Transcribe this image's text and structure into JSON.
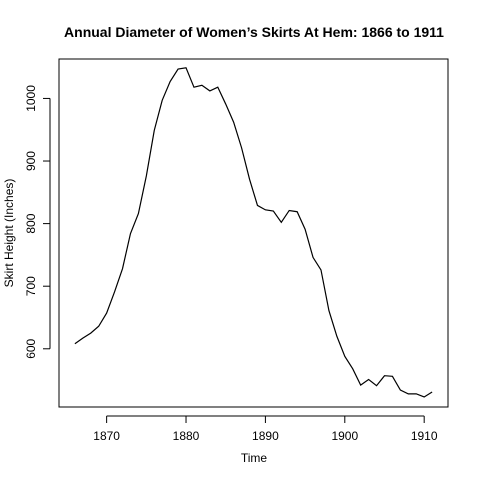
{
  "chart_data": {
    "type": "line",
    "title": "Annual Diameter of Women’s Skirts At Hem: 1866 to 1911",
    "xlabel": "Time",
    "ylabel": "Skirt Height (Inches)",
    "xlim": [
      1864,
      1913
    ],
    "ylim": [
      507,
      1063
    ],
    "xticks": [
      1870,
      1880,
      1890,
      1900,
      1910
    ],
    "yticks": [
      600,
      700,
      800,
      900,
      1000
    ],
    "grid": false,
    "series": [
      {
        "x": [
          1866,
          1867,
          1868,
          1869,
          1870,
          1871,
          1872,
          1873,
          1874,
          1875,
          1876,
          1877,
          1878,
          1879,
          1880,
          1881,
          1882,
          1883,
          1884,
          1885,
          1886,
          1887,
          1888,
          1889,
          1890,
          1891,
          1892,
          1893,
          1894,
          1895,
          1896,
          1897,
          1898,
          1899,
          1900,
          1901,
          1902,
          1903,
          1904,
          1905,
          1906,
          1907,
          1908,
          1909,
          1910,
          1911
        ],
        "y": [
          608,
          617,
          625,
          636,
          657,
          691,
          728,
          784,
          816,
          876,
          949,
          997,
          1027,
          1047,
          1049,
          1018,
          1021,
          1012,
          1018,
          991,
          962,
          921,
          871,
          829,
          822,
          820,
          802,
          821,
          819,
          791,
          746,
          726,
          661,
          620,
          588,
          568,
          542,
          551,
          541,
          557,
          556,
          534,
          528,
          528,
          523,
          531
        ]
      }
    ]
  }
}
